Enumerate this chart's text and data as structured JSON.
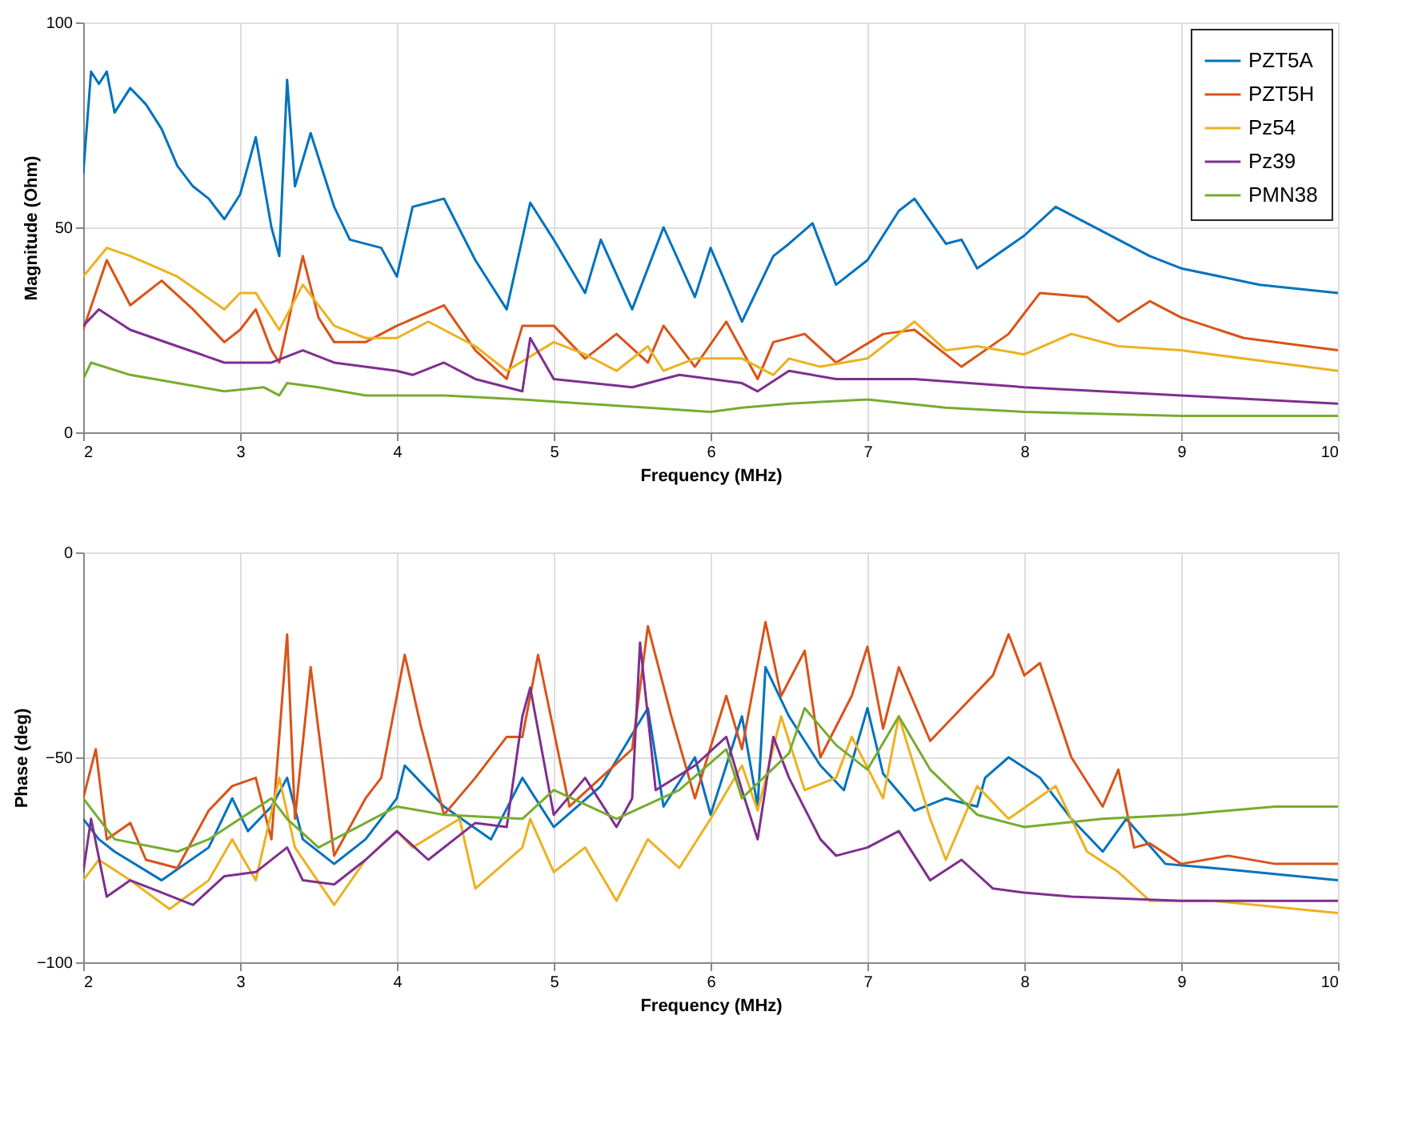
{
  "chart_data": [
    {
      "type": "line",
      "xlabel": "Frequency (MHz)",
      "ylabel": "Magnitude (Ohm)",
      "xlim": [
        2,
        10
      ],
      "xticks": [
        2,
        3,
        4,
        5,
        6,
        7,
        8,
        9,
        10
      ],
      "ylim": [
        0,
        100
      ],
      "yticks": [
        0,
        50,
        100
      ],
      "grid": true,
      "legend": "top right",
      "line_style": "solid",
      "series": [
        {
          "name": "PZT5A",
          "color": "#0072bd",
          "x": [
            2.0,
            2.05,
            2.1,
            2.15,
            2.2,
            2.3,
            2.4,
            2.5,
            2.6,
            2.7,
            2.8,
            2.9,
            3.0,
            3.1,
            3.2,
            3.25,
            3.3,
            3.35,
            3.45,
            3.6,
            3.7,
            3.9,
            4.0,
            4.1,
            4.3,
            4.5,
            4.7,
            4.85,
            5.0,
            5.2,
            5.3,
            5.5,
            5.7,
            5.9,
            6.0,
            6.2,
            6.4,
            6.5,
            6.65,
            6.8,
            7.0,
            7.2,
            7.3,
            7.5,
            7.6,
            7.7,
            8.0,
            8.2,
            8.8,
            9.0,
            9.5,
            10.0
          ],
          "values": [
            63,
            88,
            85,
            88,
            78,
            84,
            80,
            74,
            65,
            60,
            57,
            52,
            58,
            72,
            50,
            43,
            86,
            60,
            73,
            55,
            47,
            45,
            38,
            55,
            57,
            42,
            30,
            56,
            47,
            34,
            47,
            30,
            50,
            33,
            45,
            27,
            43,
            46,
            51,
            36,
            42,
            54,
            57,
            46,
            47,
            40,
            48,
            55,
            43,
            40,
            36,
            34
          ]
        },
        {
          "name": "PZT5H",
          "color": "#d95319",
          "x": [
            2.0,
            2.15,
            2.3,
            2.5,
            2.7,
            2.9,
            3.0,
            3.1,
            3.2,
            3.25,
            3.4,
            3.5,
            3.6,
            3.8,
            4.0,
            4.3,
            4.5,
            4.7,
            4.8,
            5.0,
            5.2,
            5.4,
            5.6,
            5.7,
            5.9,
            6.1,
            6.3,
            6.4,
            6.6,
            6.8,
            7.1,
            7.3,
            7.6,
            7.9,
            8.1,
            8.4,
            8.6,
            8.8,
            9.0,
            9.4,
            10.0
          ],
          "values": [
            25,
            42,
            31,
            37,
            30,
            22,
            25,
            30,
            20,
            17,
            43,
            28,
            22,
            22,
            26,
            31,
            20,
            13,
            26,
            26,
            18,
            24,
            17,
            26,
            16,
            27,
            13,
            22,
            24,
            17,
            24,
            25,
            16,
            24,
            34,
            33,
            27,
            32,
            28,
            23,
            20
          ]
        },
        {
          "name": "Pz54",
          "color": "#edb120",
          "x": [
            2.0,
            2.15,
            2.3,
            2.6,
            2.9,
            3.0,
            3.1,
            3.25,
            3.4,
            3.6,
            3.8,
            4.0,
            4.2,
            4.5,
            4.7,
            5.0,
            5.2,
            5.4,
            5.6,
            5.7,
            5.9,
            6.2,
            6.4,
            6.5,
            6.7,
            7.0,
            7.3,
            7.5,
            7.7,
            8.0,
            8.3,
            8.6,
            9.0,
            10.0
          ],
          "values": [
            38,
            45,
            43,
            38,
            30,
            34,
            34,
            25,
            36,
            26,
            23,
            23,
            27,
            21,
            15,
            22,
            19,
            15,
            21,
            15,
            18,
            18,
            14,
            18,
            16,
            18,
            27,
            20,
            21,
            19,
            24,
            21,
            20,
            15
          ]
        },
        {
          "name": "Pz39",
          "color": "#7e2f8e",
          "x": [
            2.0,
            2.1,
            2.3,
            2.6,
            2.9,
            3.2,
            3.4,
            3.6,
            4.0,
            4.1,
            4.3,
            4.5,
            4.8,
            4.85,
            5.0,
            5.5,
            5.8,
            6.2,
            6.3,
            6.5,
            6.8,
            7.3,
            8.0,
            9.0,
            10.0
          ],
          "values": [
            26,
            30,
            25,
            21,
            17,
            17,
            20,
            17,
            15,
            14,
            17,
            13,
            10,
            23,
            13,
            11,
            14,
            12,
            10,
            15,
            13,
            13,
            11,
            9,
            7
          ]
        },
        {
          "name": "PMN38",
          "color": "#77ac30",
          "x": [
            2.0,
            2.05,
            2.3,
            2.6,
            2.9,
            3.15,
            3.25,
            3.3,
            3.5,
            3.8,
            4.3,
            4.8,
            5.2,
            5.6,
            6.0,
            6.2,
            6.5,
            7.0,
            7.5,
            8.0,
            9.0,
            10.0
          ],
          "values": [
            13,
            17,
            14,
            12,
            10,
            11,
            9,
            12,
            11,
            9,
            9,
            8,
            7,
            6,
            5,
            6,
            7,
            8,
            6,
            5,
            4,
            4
          ]
        }
      ]
    },
    {
      "type": "line",
      "xlabel": "Frequency (MHz)",
      "ylabel": "Phase (deg)",
      "xlim": [
        2,
        10
      ],
      "xticks": [
        2,
        3,
        4,
        5,
        6,
        7,
        8,
        9,
        10
      ],
      "ylim": [
        -100,
        0
      ],
      "yticks": [
        -100,
        -50,
        0
      ],
      "grid": true,
      "line_style": "solid",
      "series": [
        {
          "color": "#0072bd",
          "x": [
            2.0,
            2.1,
            2.2,
            2.5,
            2.8,
            2.95,
            3.05,
            3.2,
            3.3,
            3.4,
            3.6,
            3.8,
            4.0,
            4.05,
            4.3,
            4.6,
            4.8,
            5.0,
            5.3,
            5.6,
            5.7,
            5.9,
            6.0,
            6.2,
            6.3,
            6.35,
            6.5,
            6.7,
            6.85,
            7.0,
            7.1,
            7.3,
            7.5,
            7.7,
            7.75,
            7.9,
            8.1,
            8.3,
            8.5,
            8.65,
            8.9,
            9.2,
            10.0
          ],
          "values": [
            -65,
            -70,
            -73,
            -80,
            -72,
            -60,
            -68,
            -62,
            -55,
            -70,
            -76,
            -70,
            -60,
            -52,
            -62,
            -70,
            -55,
            -67,
            -57,
            -38,
            -62,
            -50,
            -64,
            -40,
            -62,
            -28,
            -40,
            -52,
            -58,
            -38,
            -54,
            -63,
            -60,
            -62,
            -55,
            -50,
            -55,
            -65,
            -73,
            -65,
            -76,
            -77,
            -80
          ]
        },
        {
          "color": "#d95319",
          "x": [
            2.0,
            2.08,
            2.15,
            2.3,
            2.4,
            2.6,
            2.8,
            2.95,
            3.1,
            3.2,
            3.3,
            3.35,
            3.45,
            3.6,
            3.8,
            3.9,
            4.05,
            4.15,
            4.3,
            4.5,
            4.7,
            4.8,
            4.9,
            5.1,
            5.3,
            5.5,
            5.6,
            5.75,
            5.9,
            6.1,
            6.2,
            6.35,
            6.45,
            6.6,
            6.7,
            6.9,
            7.0,
            7.1,
            7.2,
            7.4,
            7.6,
            7.8,
            7.9,
            8.0,
            8.1,
            8.3,
            8.5,
            8.6,
            8.7,
            8.8,
            9.0,
            9.3,
            9.6,
            10.0
          ],
          "values": [
            -60,
            -48,
            -70,
            -66,
            -75,
            -77,
            -63,
            -57,
            -55,
            -70,
            -20,
            -65,
            -28,
            -74,
            -60,
            -55,
            -25,
            -42,
            -64,
            -55,
            -45,
            -45,
            -25,
            -62,
            -55,
            -48,
            -18,
            -40,
            -60,
            -35,
            -48,
            -17,
            -35,
            -24,
            -50,
            -35,
            -23,
            -43,
            -28,
            -46,
            -38,
            -30,
            -20,
            -30,
            -27,
            -50,
            -62,
            -53,
            -72,
            -71,
            -76,
            -74,
            -76,
            -76
          ]
        },
        {
          "color": "#edb120",
          "x": [
            2.0,
            2.1,
            2.3,
            2.55,
            2.8,
            2.95,
            3.1,
            3.25,
            3.35,
            3.6,
            3.8,
            4.0,
            4.1,
            4.4,
            4.5,
            4.8,
            4.85,
            5.0,
            5.2,
            5.4,
            5.6,
            5.8,
            6.0,
            6.2,
            6.3,
            6.45,
            6.6,
            6.8,
            6.9,
            7.1,
            7.2,
            7.4,
            7.5,
            7.7,
            7.9,
            8.2,
            8.4,
            8.6,
            8.8,
            9.2,
            10.0
          ],
          "values": [
            -80,
            -75,
            -80,
            -87,
            -80,
            -70,
            -80,
            -55,
            -72,
            -86,
            -75,
            -68,
            -72,
            -65,
            -82,
            -72,
            -65,
            -78,
            -72,
            -85,
            -70,
            -77,
            -65,
            -52,
            -63,
            -40,
            -58,
            -55,
            -45,
            -60,
            -40,
            -65,
            -75,
            -57,
            -65,
            -57,
            -73,
            -78,
            -85,
            -85,
            -88
          ]
        },
        {
          "color": "#7e2f8e",
          "x": [
            2.0,
            2.05,
            2.15,
            2.3,
            2.5,
            2.7,
            2.9,
            3.1,
            3.3,
            3.4,
            3.6,
            3.8,
            4.0,
            4.2,
            4.5,
            4.7,
            4.8,
            4.85,
            5.0,
            5.2,
            5.4,
            5.5,
            5.55,
            5.65,
            5.9,
            6.1,
            6.2,
            6.3,
            6.4,
            6.5,
            6.7,
            6.8,
            7.0,
            7.2,
            7.4,
            7.6,
            7.8,
            8.0,
            8.3,
            9.0,
            10.0
          ],
          "values": [
            -78,
            -65,
            -84,
            -80,
            -83,
            -86,
            -79,
            -78,
            -72,
            -80,
            -81,
            -75,
            -68,
            -75,
            -66,
            -67,
            -40,
            -33,
            -64,
            -55,
            -67,
            -60,
            -22,
            -58,
            -52,
            -45,
            -58,
            -70,
            -45,
            -55,
            -70,
            -74,
            -72,
            -68,
            -80,
            -75,
            -82,
            -83,
            -84,
            -85,
            -85
          ]
        },
        {
          "color": "#77ac30",
          "x": [
            2.0,
            2.2,
            2.6,
            2.8,
            3.0,
            3.2,
            3.3,
            3.5,
            4.0,
            4.3,
            4.8,
            5.0,
            5.4,
            5.8,
            6.1,
            6.2,
            6.5,
            6.6,
            6.8,
            7.0,
            7.2,
            7.4,
            7.7,
            8.0,
            8.5,
            9.0,
            9.6,
            10.0
          ],
          "values": [
            -60,
            -70,
            -73,
            -70,
            -65,
            -60,
            -65,
            -72,
            -62,
            -64,
            -65,
            -58,
            -65,
            -58,
            -48,
            -60,
            -49,
            -38,
            -47,
            -53,
            -40,
            -53,
            -64,
            -67,
            -65,
            -64,
            -62,
            -62
          ]
        }
      ]
    }
  ]
}
